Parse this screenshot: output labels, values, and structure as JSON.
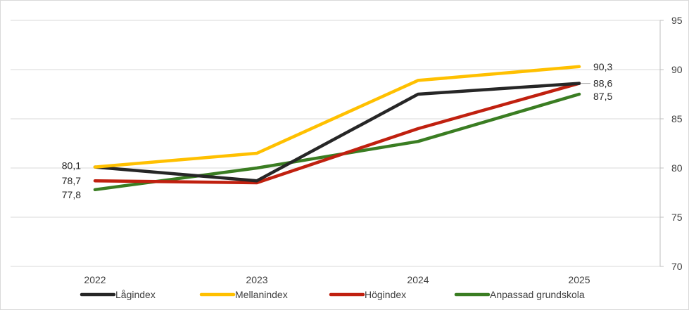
{
  "chart_data": {
    "type": "line",
    "title": "",
    "xlabel": "",
    "ylabel": "",
    "categories": [
      "2022",
      "2023",
      "2024",
      "2025"
    ],
    "ylim": [
      70,
      95
    ],
    "yticks": [
      "70",
      "75",
      "80",
      "85",
      "90",
      "95"
    ],
    "y_axis_side": "right",
    "grid": true,
    "legend_position": "bottom",
    "series": [
      {
        "name": "Lågindex",
        "color": "#262626",
        "values": [
          80.1,
          78.7,
          87.5,
          88.6
        ]
      },
      {
        "name": "Mellanindex",
        "color": "#FFC000",
        "values": [
          80.1,
          81.5,
          88.9,
          90.3
        ]
      },
      {
        "name": "Högindex",
        "color": "#C0200F",
        "values": [
          78.7,
          78.5,
          84.0,
          88.6
        ]
      },
      {
        "name": "Anpassad grundskola",
        "color": "#3A7D22",
        "values": [
          77.8,
          80.0,
          82.7,
          87.5
        ]
      }
    ],
    "data_labels": [
      {
        "text": "80,1",
        "category": "2022",
        "value": 80.1,
        "side": "left"
      },
      {
        "text": "78,7",
        "category": "2022",
        "value": 78.7,
        "side": "left"
      },
      {
        "text": "77,8",
        "category": "2022",
        "value": 77.8,
        "side": "left"
      },
      {
        "text": "90,3",
        "category": "2025",
        "value": 90.3,
        "side": "right"
      },
      {
        "text": "88,6",
        "category": "2025",
        "value": 88.6,
        "side": "right"
      },
      {
        "text": "87,5",
        "category": "2025",
        "value": 87.5,
        "side": "right"
      }
    ]
  }
}
